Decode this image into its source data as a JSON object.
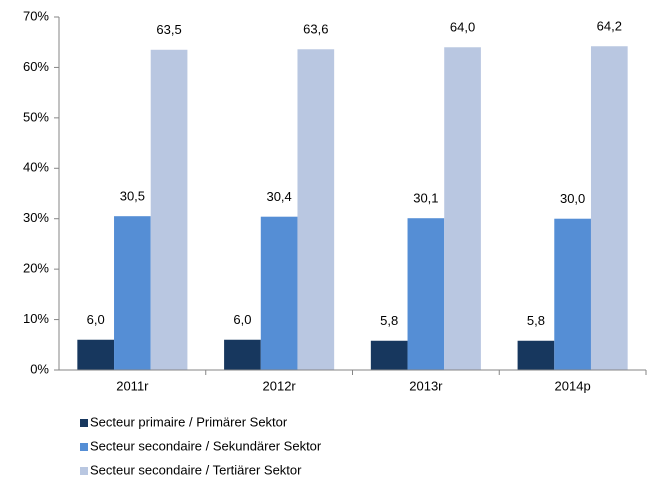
{
  "chart_data": {
    "type": "bar",
    "categories": [
      "2011r",
      "2012r",
      "2013r",
      "2014p"
    ],
    "series": [
      {
        "name": "Secteur primaire / Primärer Sektor",
        "color": "#17375e",
        "values": [
          6.0,
          6.0,
          5.8,
          5.8
        ],
        "value_labels": [
          "6,0",
          "6,0",
          "5,8",
          "5,8"
        ]
      },
      {
        "name": "Secteur secondaire / Sekundärer Sektor",
        "color": "#558ed5",
        "values": [
          30.5,
          30.4,
          30.1,
          30.0
        ],
        "value_labels": [
          "30,5",
          "30,4",
          "30,1",
          "30,0"
        ]
      },
      {
        "name": "Secteur secondaire / Tertiärer Sektor",
        "color": "#b9c7e1",
        "values": [
          63.5,
          63.6,
          64.0,
          64.2
        ],
        "value_labels": [
          "63,5",
          "63,6",
          "64,0",
          "64,2"
        ]
      }
    ],
    "ylim": [
      0,
      70
    ],
    "yticks": [
      {
        "value": 0,
        "label": "0%"
      },
      {
        "value": 10,
        "label": "10%"
      },
      {
        "value": 20,
        "label": "20%"
      },
      {
        "value": 30,
        "label": "30%"
      },
      {
        "value": 40,
        "label": "40%"
      },
      {
        "value": 50,
        "label": "50%"
      },
      {
        "value": 60,
        "label": "60%"
      },
      {
        "value": 70,
        "label": "70%"
      }
    ],
    "grid": false,
    "legend": "bottom"
  }
}
